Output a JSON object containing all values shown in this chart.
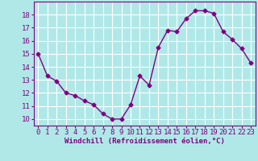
{
  "x": [
    0,
    1,
    2,
    3,
    4,
    5,
    6,
    7,
    8,
    9,
    10,
    11,
    12,
    13,
    14,
    15,
    16,
    17,
    18,
    19,
    20,
    21,
    22,
    23
  ],
  "y": [
    15.0,
    13.3,
    12.9,
    12.0,
    11.8,
    11.4,
    11.1,
    10.4,
    10.0,
    10.0,
    11.1,
    13.3,
    12.6,
    15.5,
    16.8,
    16.7,
    17.7,
    18.3,
    18.3,
    18.1,
    16.7,
    16.1,
    15.4,
    14.3
  ],
  "line_color": "#800080",
  "marker": "D",
  "marker_size": 2.5,
  "background_color": "#b0e8e8",
  "grid_color": "#ffffff",
  "xlabel": "Windchill (Refroidissement éolien,°C)",
  "xlabel_color": "#800080",
  "tick_color": "#800080",
  "xlim": [
    -0.5,
    23.5
  ],
  "ylim": [
    9.5,
    19.0
  ],
  "yticks": [
    10,
    11,
    12,
    13,
    14,
    15,
    16,
    17,
    18
  ],
  "xticks": [
    0,
    1,
    2,
    3,
    4,
    5,
    6,
    7,
    8,
    9,
    10,
    11,
    12,
    13,
    14,
    15,
    16,
    17,
    18,
    19,
    20,
    21,
    22,
    23
  ],
  "font_size": 6.5,
  "line_width": 1.0
}
